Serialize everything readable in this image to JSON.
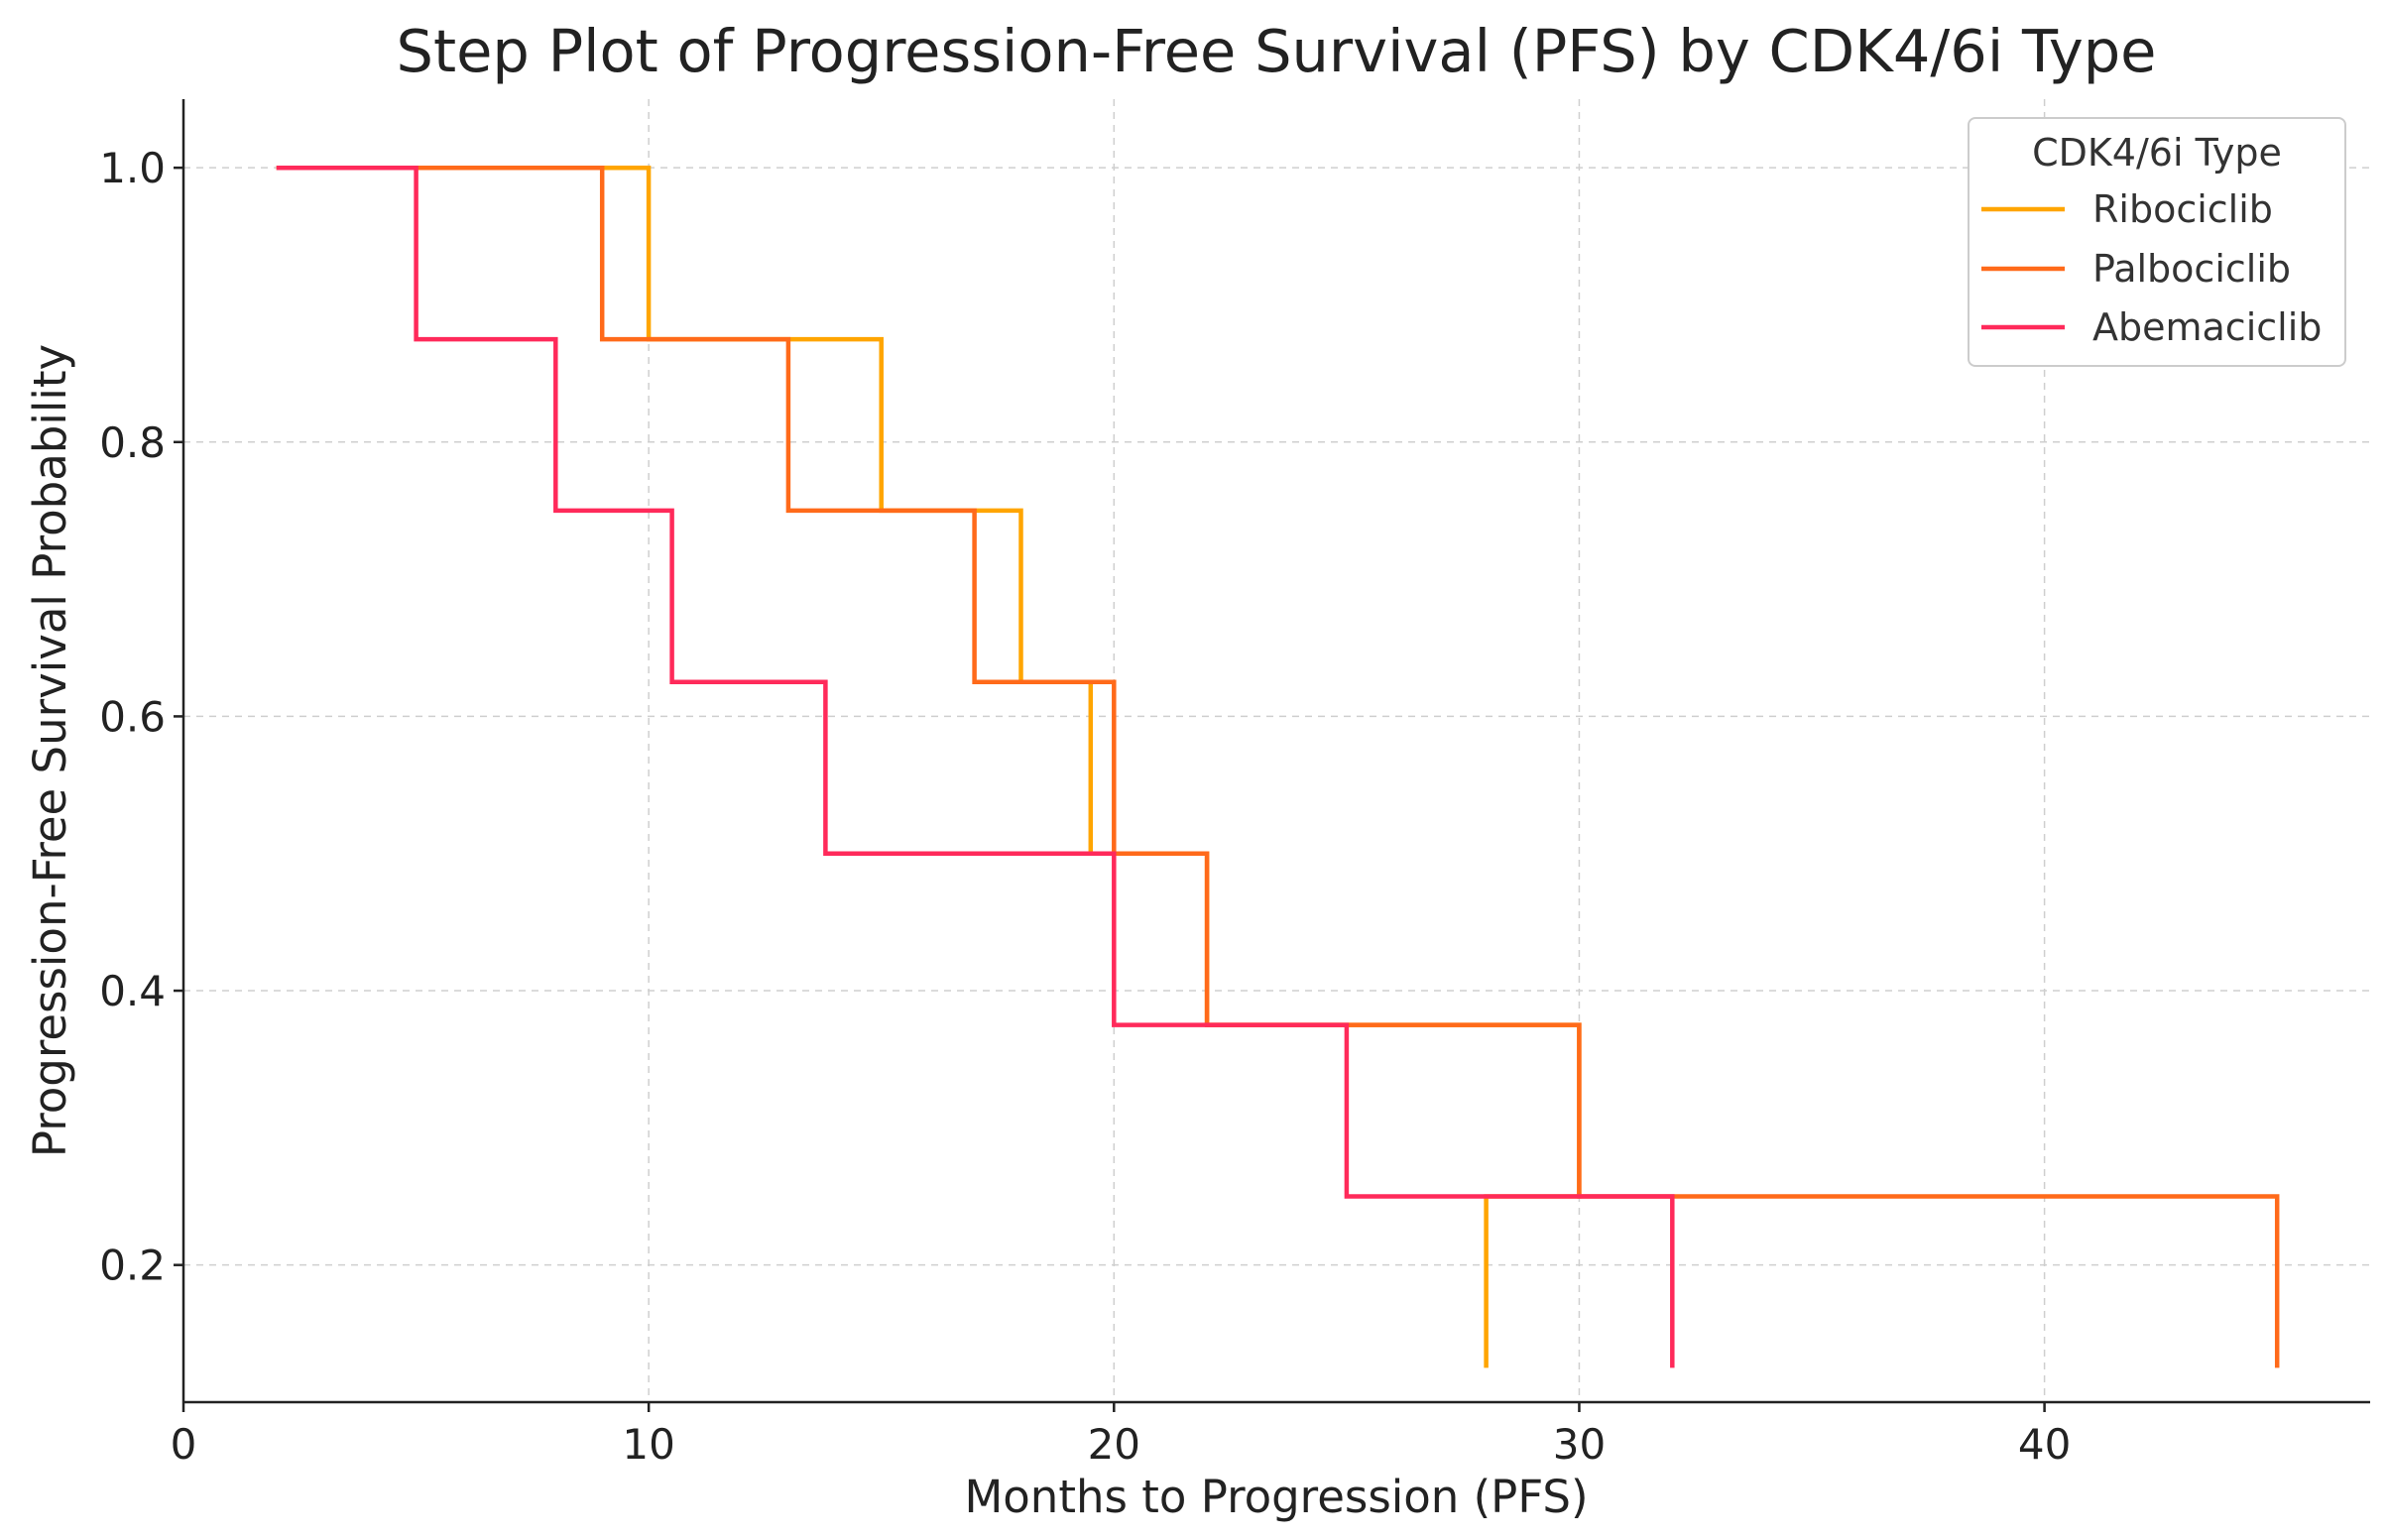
{
  "chart_data": {
    "type": "line",
    "step": true,
    "title": "Step Plot of Progression-Free Survival (PFS) by CDK4/6i Type",
    "xlabel": "Months to Progression (PFS)",
    "ylabel": "Progression-Free Survival Probability",
    "xlim": [
      0,
      47
    ],
    "ylim": [
      0.1,
      1.05
    ],
    "xticks": [
      0,
      10,
      20,
      30,
      40
    ],
    "xtick_labels": [
      "0",
      "10",
      "20",
      "30",
      "40"
    ],
    "yticks": [
      0.2,
      0.4,
      0.6,
      0.8,
      1.0
    ],
    "ytick_labels": [
      "0.2",
      "0.4",
      "0.6",
      "0.8",
      "1.0"
    ],
    "grid": true,
    "legend": {
      "title": "CDK4/6i Type",
      "position": "top-right"
    },
    "series": [
      {
        "name": "Ribociclib",
        "color": "#FFA500",
        "points": [
          [
            2,
            1.0
          ],
          [
            10,
            1.0
          ],
          [
            10,
            0.875
          ],
          [
            15,
            0.875
          ],
          [
            15,
            0.75
          ],
          [
            18,
            0.75
          ],
          [
            18,
            0.625
          ],
          [
            19.5,
            0.625
          ],
          [
            19.5,
            0.5
          ],
          [
            22,
            0.5
          ],
          [
            22,
            0.375
          ],
          [
            30,
            0.375
          ],
          [
            30,
            0.25
          ],
          [
            28,
            0.25
          ],
          [
            28,
            0.125
          ]
        ]
      },
      {
        "name": "Palbociclib",
        "color": "#FF6A1A",
        "points": [
          [
            2,
            1.0
          ],
          [
            9,
            1.0
          ],
          [
            9,
            0.875
          ],
          [
            13,
            0.875
          ],
          [
            13,
            0.75
          ],
          [
            17,
            0.75
          ],
          [
            17,
            0.625
          ],
          [
            20,
            0.625
          ],
          [
            20,
            0.5
          ],
          [
            22,
            0.5
          ],
          [
            22,
            0.375
          ],
          [
            30,
            0.375
          ],
          [
            30,
            0.25
          ],
          [
            45,
            0.25
          ],
          [
            45,
            0.125
          ]
        ]
      },
      {
        "name": "Abemaciclib",
        "color": "#FF2A5A",
        "points": [
          [
            2,
            1.0
          ],
          [
            5,
            1.0
          ],
          [
            5,
            0.875
          ],
          [
            8,
            0.875
          ],
          [
            8,
            0.75
          ],
          [
            10.5,
            0.75
          ],
          [
            10.5,
            0.625
          ],
          [
            13.8,
            0.625
          ],
          [
            13.8,
            0.5
          ],
          [
            20,
            0.5
          ],
          [
            20,
            0.375
          ],
          [
            25,
            0.375
          ],
          [
            25,
            0.25
          ],
          [
            32,
            0.25
          ],
          [
            32,
            0.125
          ]
        ]
      }
    ]
  }
}
